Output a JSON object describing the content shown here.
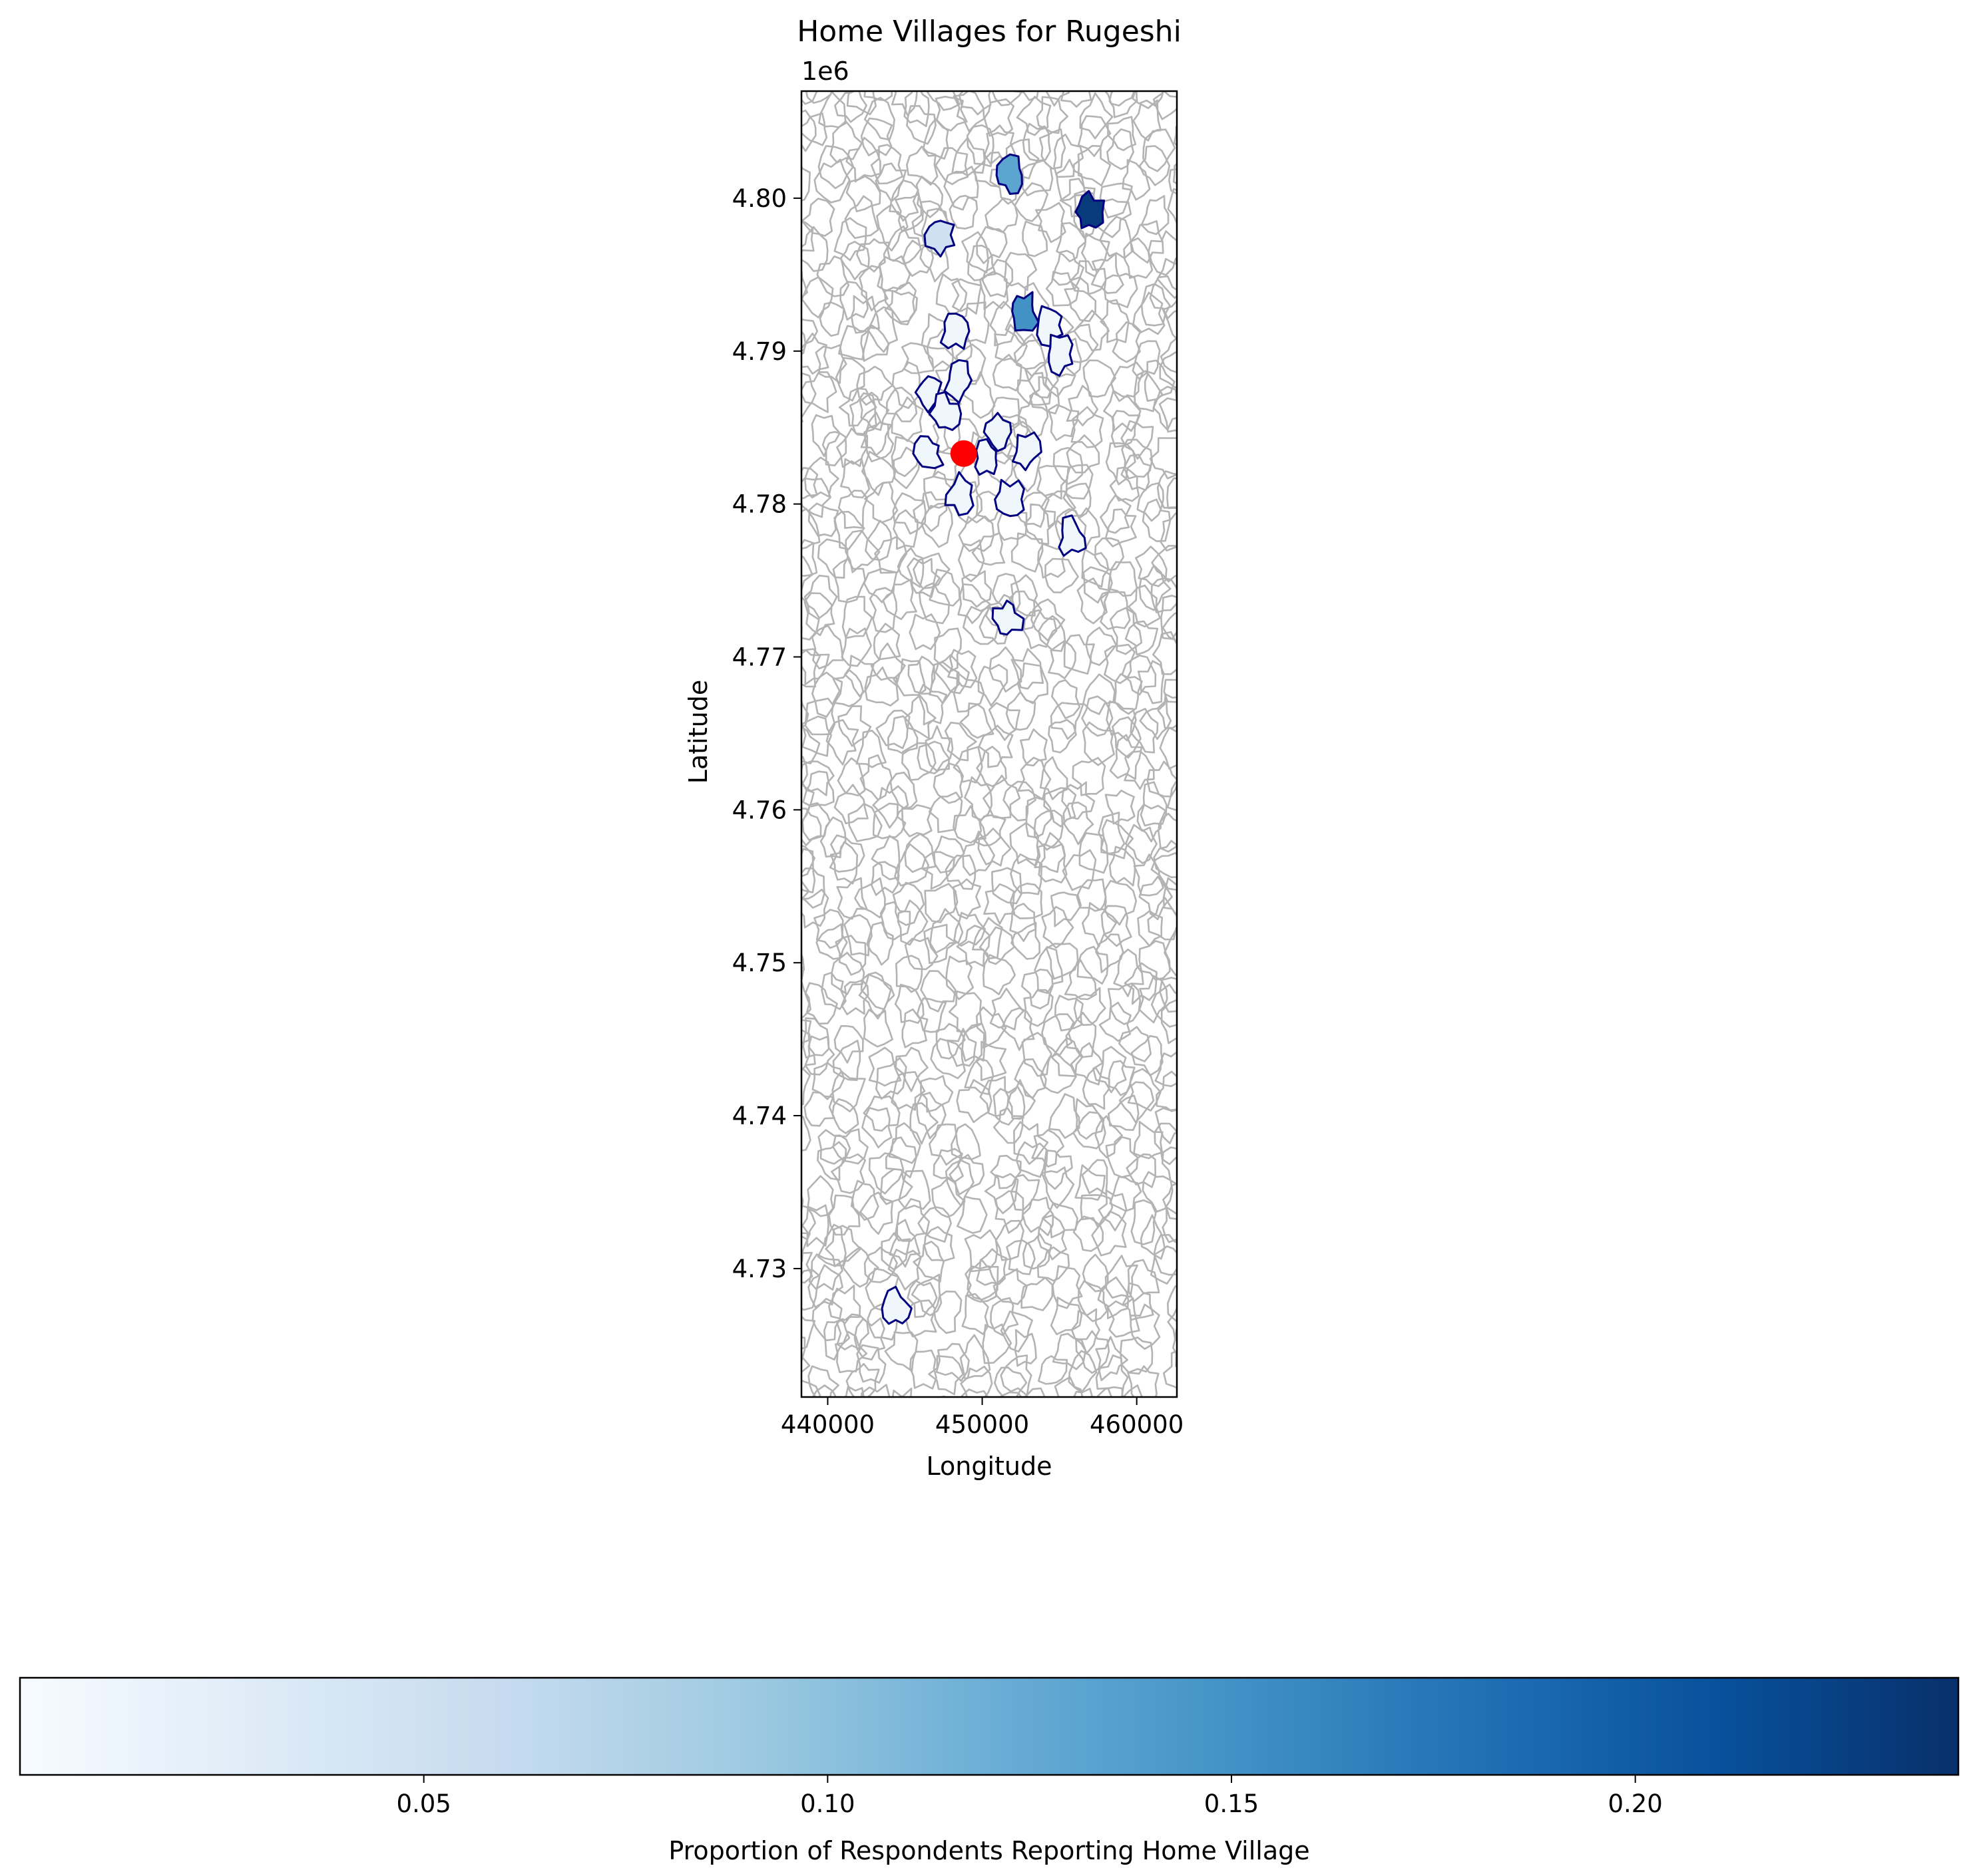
{
  "figure": {
    "title": "Home Villages for Rugeshi",
    "xlabel": "Longitude",
    "ylabel": "Latitude",
    "y_offset_label": "1e6",
    "x_ticks": [
      "440000",
      "450000",
      "460000"
    ],
    "y_ticks": [
      "4.73",
      "4.74",
      "4.75",
      "4.76",
      "4.77",
      "4.78",
      "4.79",
      "4.80"
    ],
    "colorbar": {
      "label": "Proportion of Respondents Reporting Home Village",
      "ticks": [
        "0.05",
        "0.10",
        "0.15",
        "0.20"
      ],
      "colormap": "Blues",
      "range": [
        0.0,
        0.24
      ]
    },
    "colors": {
      "village_boundary": "#b3b3b3",
      "home_village_outline": "#000080",
      "marker": "#ff0000"
    }
  },
  "chart_data": {
    "type": "map",
    "title": "Home Villages for Rugeshi",
    "xlabel": "Longitude",
    "ylabel": "Latitude",
    "xlim": [
      438300,
      462600
    ],
    "ylim": [
      4721600,
      4807000
    ],
    "marker": {
      "x": 448800,
      "y": 4783300,
      "color": "#ff0000"
    },
    "home_villages": [
      {
        "x": 451800,
        "y": 4801500,
        "value": 0.13
      },
      {
        "x": 456900,
        "y": 4799100,
        "value": 0.23
      },
      {
        "x": 447300,
        "y": 4797600,
        "value": 0.05
      },
      {
        "x": 452700,
        "y": 4792600,
        "value": 0.15
      },
      {
        "x": 454400,
        "y": 4791700,
        "value": 0.01
      },
      {
        "x": 448300,
        "y": 4791300,
        "value": 0.01
      },
      {
        "x": 455000,
        "y": 4789800,
        "value": 0.01
      },
      {
        "x": 446500,
        "y": 4787300,
        "value": 0.01
      },
      {
        "x": 448500,
        "y": 4788100,
        "value": 0.01
      },
      {
        "x": 447600,
        "y": 4785900,
        "value": 0.01
      },
      {
        "x": 451000,
        "y": 4784700,
        "value": 0.01
      },
      {
        "x": 452800,
        "y": 4783400,
        "value": 0.01
      },
      {
        "x": 446500,
        "y": 4783300,
        "value": 0.01
      },
      {
        "x": 450300,
        "y": 4783000,
        "value": 0.01
      },
      {
        "x": 448500,
        "y": 4780600,
        "value": 0.01
      },
      {
        "x": 451800,
        "y": 4780300,
        "value": 0.01
      },
      {
        "x": 455800,
        "y": 4777800,
        "value": 0.01
      },
      {
        "x": 451600,
        "y": 4772500,
        "value": 0.01
      },
      {
        "x": 444400,
        "y": 4727400,
        "value": 0.01
      }
    ]
  }
}
